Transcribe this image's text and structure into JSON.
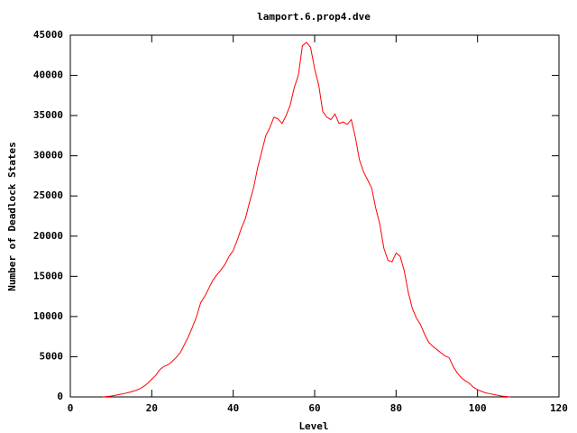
{
  "chart_data": {
    "type": "line",
    "title": "lamport.6.prop4.dve",
    "x_label": "Level",
    "y_label": "Number of Deadlock States",
    "color": "#ff0000",
    "x": [
      8,
      9,
      10,
      11,
      12,
      13,
      14,
      15,
      16,
      17,
      18,
      19,
      20,
      21,
      22,
      23,
      24,
      25,
      26,
      27,
      28,
      29,
      30,
      31,
      32,
      33,
      34,
      35,
      36,
      37,
      38,
      39,
      40,
      41,
      42,
      43,
      44,
      45,
      46,
      47,
      48,
      49,
      50,
      51,
      52,
      53,
      54,
      55,
      56,
      57,
      58,
      59,
      60,
      61,
      62,
      63,
      64,
      65,
      66,
      67,
      68,
      69,
      70,
      71,
      72,
      73,
      74,
      75,
      76,
      77,
      78,
      79,
      80,
      81,
      82,
      83,
      84,
      85,
      86,
      87,
      88,
      89,
      90,
      91,
      92,
      93,
      94,
      95,
      96,
      97,
      98,
      99,
      100,
      101,
      102,
      103,
      104,
      105,
      106,
      107,
      108
    ],
    "values": [
      0,
      50,
      100,
      200,
      300,
      400,
      500,
      650,
      800,
      1000,
      1300,
      1700,
      2200,
      2700,
      3400,
      3800,
      4000,
      4400,
      4900,
      5500,
      6500,
      7500,
      8700,
      10000,
      11700,
      12500,
      13500,
      14500,
      15200,
      15800,
      16500,
      17500,
      18200,
      19500,
      21000,
      22200,
      24200,
      26000,
      28500,
      30500,
      32500,
      33500,
      34800,
      34600,
      34000,
      35000,
      36300,
      38500,
      40000,
      43700,
      44100,
      43500,
      40800,
      38800,
      35500,
      34800,
      34500,
      35200,
      34000,
      34200,
      33900,
      34500,
      32300,
      29500,
      28000,
      27000,
      26000,
      23500,
      21500,
      18500,
      17000,
      16800,
      17900,
      17500,
      15700,
      13000,
      11000,
      9800,
      9000,
      7800,
      6800,
      6300,
      5900,
      5500,
      5100,
      4900,
      3800,
      3000,
      2400,
      2000,
      1700,
      1200,
      900,
      700,
      500,
      400,
      300,
      200,
      100,
      50,
      0
    ],
    "xlim": [
      0,
      120
    ],
    "xticks": [
      0,
      20,
      40,
      60,
      80,
      100,
      120
    ],
    "ylim": [
      0,
      45000
    ],
    "yticks": [
      0,
      5000,
      10000,
      15000,
      20000,
      25000,
      30000,
      35000,
      40000,
      45000
    ],
    "grid": false
  }
}
